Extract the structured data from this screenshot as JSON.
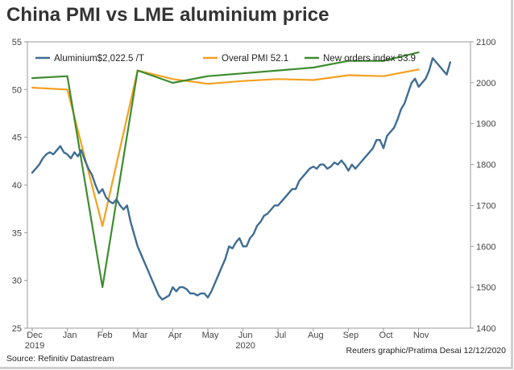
{
  "title": "China PMI vs LME aluminium price",
  "source": "Source: Refinitiv Datastream",
  "credit": "Reuters graphic/Pratima Desai 12/12/2020",
  "chart_data": {
    "type": "line",
    "title": "China PMI vs LME aluminium price",
    "x_labels": [
      "Dec",
      "Jan",
      "Feb",
      "Mar",
      "Apr",
      "May",
      "Jun",
      "Jul",
      "Aug",
      "Sep",
      "Oct",
      "Nov"
    ],
    "year_labels": [
      {
        "month_index": 0,
        "label": "2019"
      },
      {
        "month_index": 6,
        "label": "2020"
      }
    ],
    "y_left": {
      "min": 25,
      "max": 55,
      "ticks": [
        25,
        30,
        35,
        40,
        45,
        50,
        55
      ]
    },
    "y_right": {
      "min": 1400,
      "max": 2100,
      "ticks": [
        1400,
        1500,
        1600,
        1700,
        1800,
        1900,
        2000,
        2100
      ]
    },
    "series": [
      {
        "name": "Aluminium$2,022.5 /T",
        "axis": "right",
        "color": "#3f6d93",
        "x": [
          0,
          0.1,
          0.2,
          0.3,
          0.4,
          0.5,
          0.6,
          0.7,
          0.8,
          0.9,
          1,
          1.1,
          1.2,
          1.3,
          1.4,
          1.5,
          1.6,
          1.7,
          1.8,
          1.9,
          2,
          2.1,
          2.2,
          2.3,
          2.4,
          2.5,
          2.6,
          2.7,
          2.8,
          2.9,
          3,
          3.1,
          3.2,
          3.3,
          3.4,
          3.5,
          3.6,
          3.7,
          3.8,
          3.9,
          4,
          4.1,
          4.2,
          4.3,
          4.4,
          4.5,
          4.6,
          4.7,
          4.8,
          4.9,
          5,
          5.1,
          5.2,
          5.3,
          5.4,
          5.5,
          5.6,
          5.7,
          5.8,
          5.9,
          6,
          6.1,
          6.2,
          6.3,
          6.4,
          6.5,
          6.6,
          6.7,
          6.8,
          6.9,
          7,
          7.1,
          7.2,
          7.3,
          7.4,
          7.5,
          7.6,
          7.7,
          7.8,
          7.9,
          8,
          8.1,
          8.2,
          8.3,
          8.4,
          8.5,
          8.6,
          8.7,
          8.8,
          8.9,
          9,
          9.1,
          9.2,
          9.3,
          9.4,
          9.5,
          9.6,
          9.7,
          9.8,
          9.9,
          10,
          10.1,
          10.2,
          10.3,
          10.4,
          10.5,
          10.6,
          10.7,
          10.8,
          10.9,
          11,
          11.1,
          11.2,
          11.3,
          11.4,
          11.5,
          11.6,
          11.7,
          11.8,
          11.9
        ],
        "values": [
          1780,
          1790,
          1800,
          1815,
          1825,
          1830,
          1825,
          1835,
          1845,
          1830,
          1825,
          1815,
          1830,
          1820,
          1835,
          1810,
          1790,
          1775,
          1750,
          1730,
          1740,
          1720,
          1710,
          1705,
          1715,
          1700,
          1690,
          1700,
          1660,
          1630,
          1600,
          1580,
          1560,
          1540,
          1520,
          1500,
          1480,
          1470,
          1475,
          1480,
          1500,
          1490,
          1500,
          1500,
          1495,
          1485,
          1485,
          1480,
          1485,
          1485,
          1475,
          1490,
          1510,
          1530,
          1550,
          1570,
          1600,
          1595,
          1610,
          1620,
          1600,
          1600,
          1620,
          1630,
          1650,
          1660,
          1675,
          1680,
          1690,
          1700,
          1700,
          1710,
          1720,
          1730,
          1740,
          1740,
          1760,
          1770,
          1780,
          1790,
          1795,
          1790,
          1800,
          1800,
          1790,
          1795,
          1805,
          1800,
          1810,
          1800,
          1785,
          1800,
          1790,
          1800,
          1810,
          1820,
          1830,
          1840,
          1860,
          1860,
          1840,
          1870,
          1880,
          1890,
          1910,
          1935,
          1950,
          1975,
          2000,
          2010,
          1990,
          2000,
          2010,
          2030,
          2060,
          2050,
          2040,
          2030,
          2020,
          2050
        ]
      },
      {
        "name": "Overal PMI 52.1",
        "axis": "left",
        "color": "#f5a021",
        "x": [
          0,
          1,
          2,
          3,
          4,
          5,
          6,
          7,
          8,
          9,
          10,
          11
        ],
        "values": [
          50.2,
          50.0,
          35.7,
          52.0,
          51.1,
          50.6,
          50.9,
          51.1,
          51.0,
          51.5,
          51.4,
          52.1
        ]
      },
      {
        "name": "New orders index 53.9",
        "axis": "left",
        "color": "#3d8c2f",
        "x": [
          0,
          1,
          2,
          3,
          4,
          5,
          6,
          7,
          8,
          9,
          10,
          11
        ],
        "values": [
          51.2,
          51.4,
          29.3,
          52.0,
          50.7,
          51.4,
          51.7,
          52.0,
          52.3,
          53.0,
          53.0,
          53.9
        ]
      }
    ]
  }
}
